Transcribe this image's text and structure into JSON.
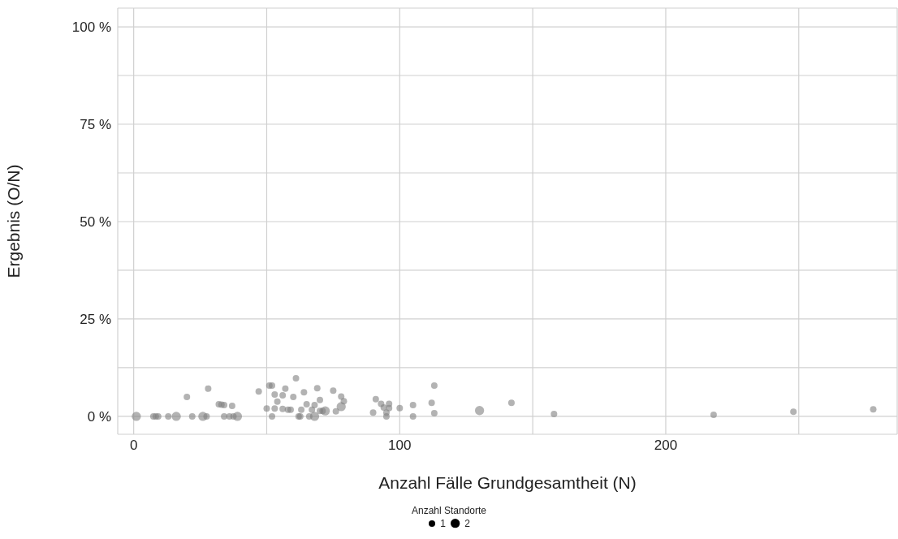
{
  "chart_data": {
    "type": "bubble",
    "xlabel": "Anzahl Fälle Grundgesamtheit (N)",
    "ylabel": "Ergebnis (O/N)",
    "legend_title": "Anzahl Standorte",
    "grid": true,
    "color": "#808080",
    "xlim": [
      -6,
      287
    ],
    "xticks": [
      0,
      {
        "value": 50,
        "label": null
      },
      100,
      {
        "value": 150,
        "label": null
      },
      200,
      {
        "value": 250,
        "label": null
      }
    ],
    "ylim": [
      -4.6,
      104.8
    ],
    "yticks": [
      {
        "value": 0,
        "label": "0 %"
      },
      {
        "value": 12.5,
        "label": null
      },
      {
        "value": 25,
        "label": "25 %"
      },
      {
        "value": 37.5,
        "label": null
      },
      {
        "value": 50,
        "label": "50 %"
      },
      {
        "value": 62.5,
        "label": null
      },
      {
        "value": 75,
        "label": "75 %"
      },
      {
        "value": 87.5,
        "label": null
      },
      {
        "value": 100,
        "label": "100 %"
      }
    ],
    "size_legend": [
      1,
      2
    ],
    "x": [
      1,
      7.4,
      8.3,
      9.2,
      13,
      16,
      20,
      22,
      26,
      27.4,
      28,
      32,
      33,
      34,
      34,
      36,
      37,
      37.5,
      39,
      47,
      50,
      51,
      52,
      52,
      53,
      53,
      54,
      56,
      56,
      57,
      58,
      59,
      60,
      61,
      62,
      62.6,
      63,
      64,
      65,
      66,
      67,
      68,
      68,
      69,
      70,
      70,
      71,
      72,
      75,
      76,
      78,
      78,
      79,
      90,
      91,
      93,
      94,
      95,
      95,
      96,
      96,
      100,
      105,
      105,
      112,
      113,
      113,
      130,
      142,
      158,
      218,
      248,
      278
    ],
    "values": [
      0,
      0,
      0,
      0,
      0,
      0,
      5,
      0,
      0,
      0,
      7.1,
      3.1,
      3,
      2.9,
      0,
      0,
      2.7,
      0,
      0,
      6.4,
      2,
      7.9,
      7.9,
      0,
      5.6,
      2,
      3.8,
      5.4,
      1.9,
      7.1,
      1.7,
      1.7,
      5,
      9.8,
      0,
      0,
      1.7,
      6.2,
      3.1,
      0,
      1.7,
      0,
      2.9,
      7.2,
      4.2,
      1.4,
      1.4,
      1.4,
      6.6,
      1.3,
      5.1,
      2.5,
      3.9,
      1,
      4.4,
      3.2,
      2.3,
      1,
      0,
      3.2,
      2.1,
      2.1,
      2.9,
      0,
      3.5,
      7.9,
      0.8,
      1.5,
      3.5,
      0.6,
      0.4,
      1.2,
      1.8
    ],
    "sizes": [
      2,
      1,
      1,
      1,
      1,
      2,
      1,
      1,
      2,
      1,
      1,
      1,
      1,
      1,
      1,
      1,
      1,
      1,
      2,
      1,
      1,
      1,
      1,
      1,
      1,
      1,
      1,
      1,
      1,
      1,
      1,
      1,
      1,
      1,
      1,
      1,
      1,
      1,
      1,
      1,
      1,
      2,
      1,
      1,
      1,
      1,
      1,
      2,
      1,
      1,
      1,
      2,
      1,
      1,
      1,
      1,
      1,
      1,
      1,
      1,
      1,
      1,
      1,
      1,
      1,
      1,
      1,
      2,
      1,
      1,
      1,
      1,
      1
    ]
  }
}
